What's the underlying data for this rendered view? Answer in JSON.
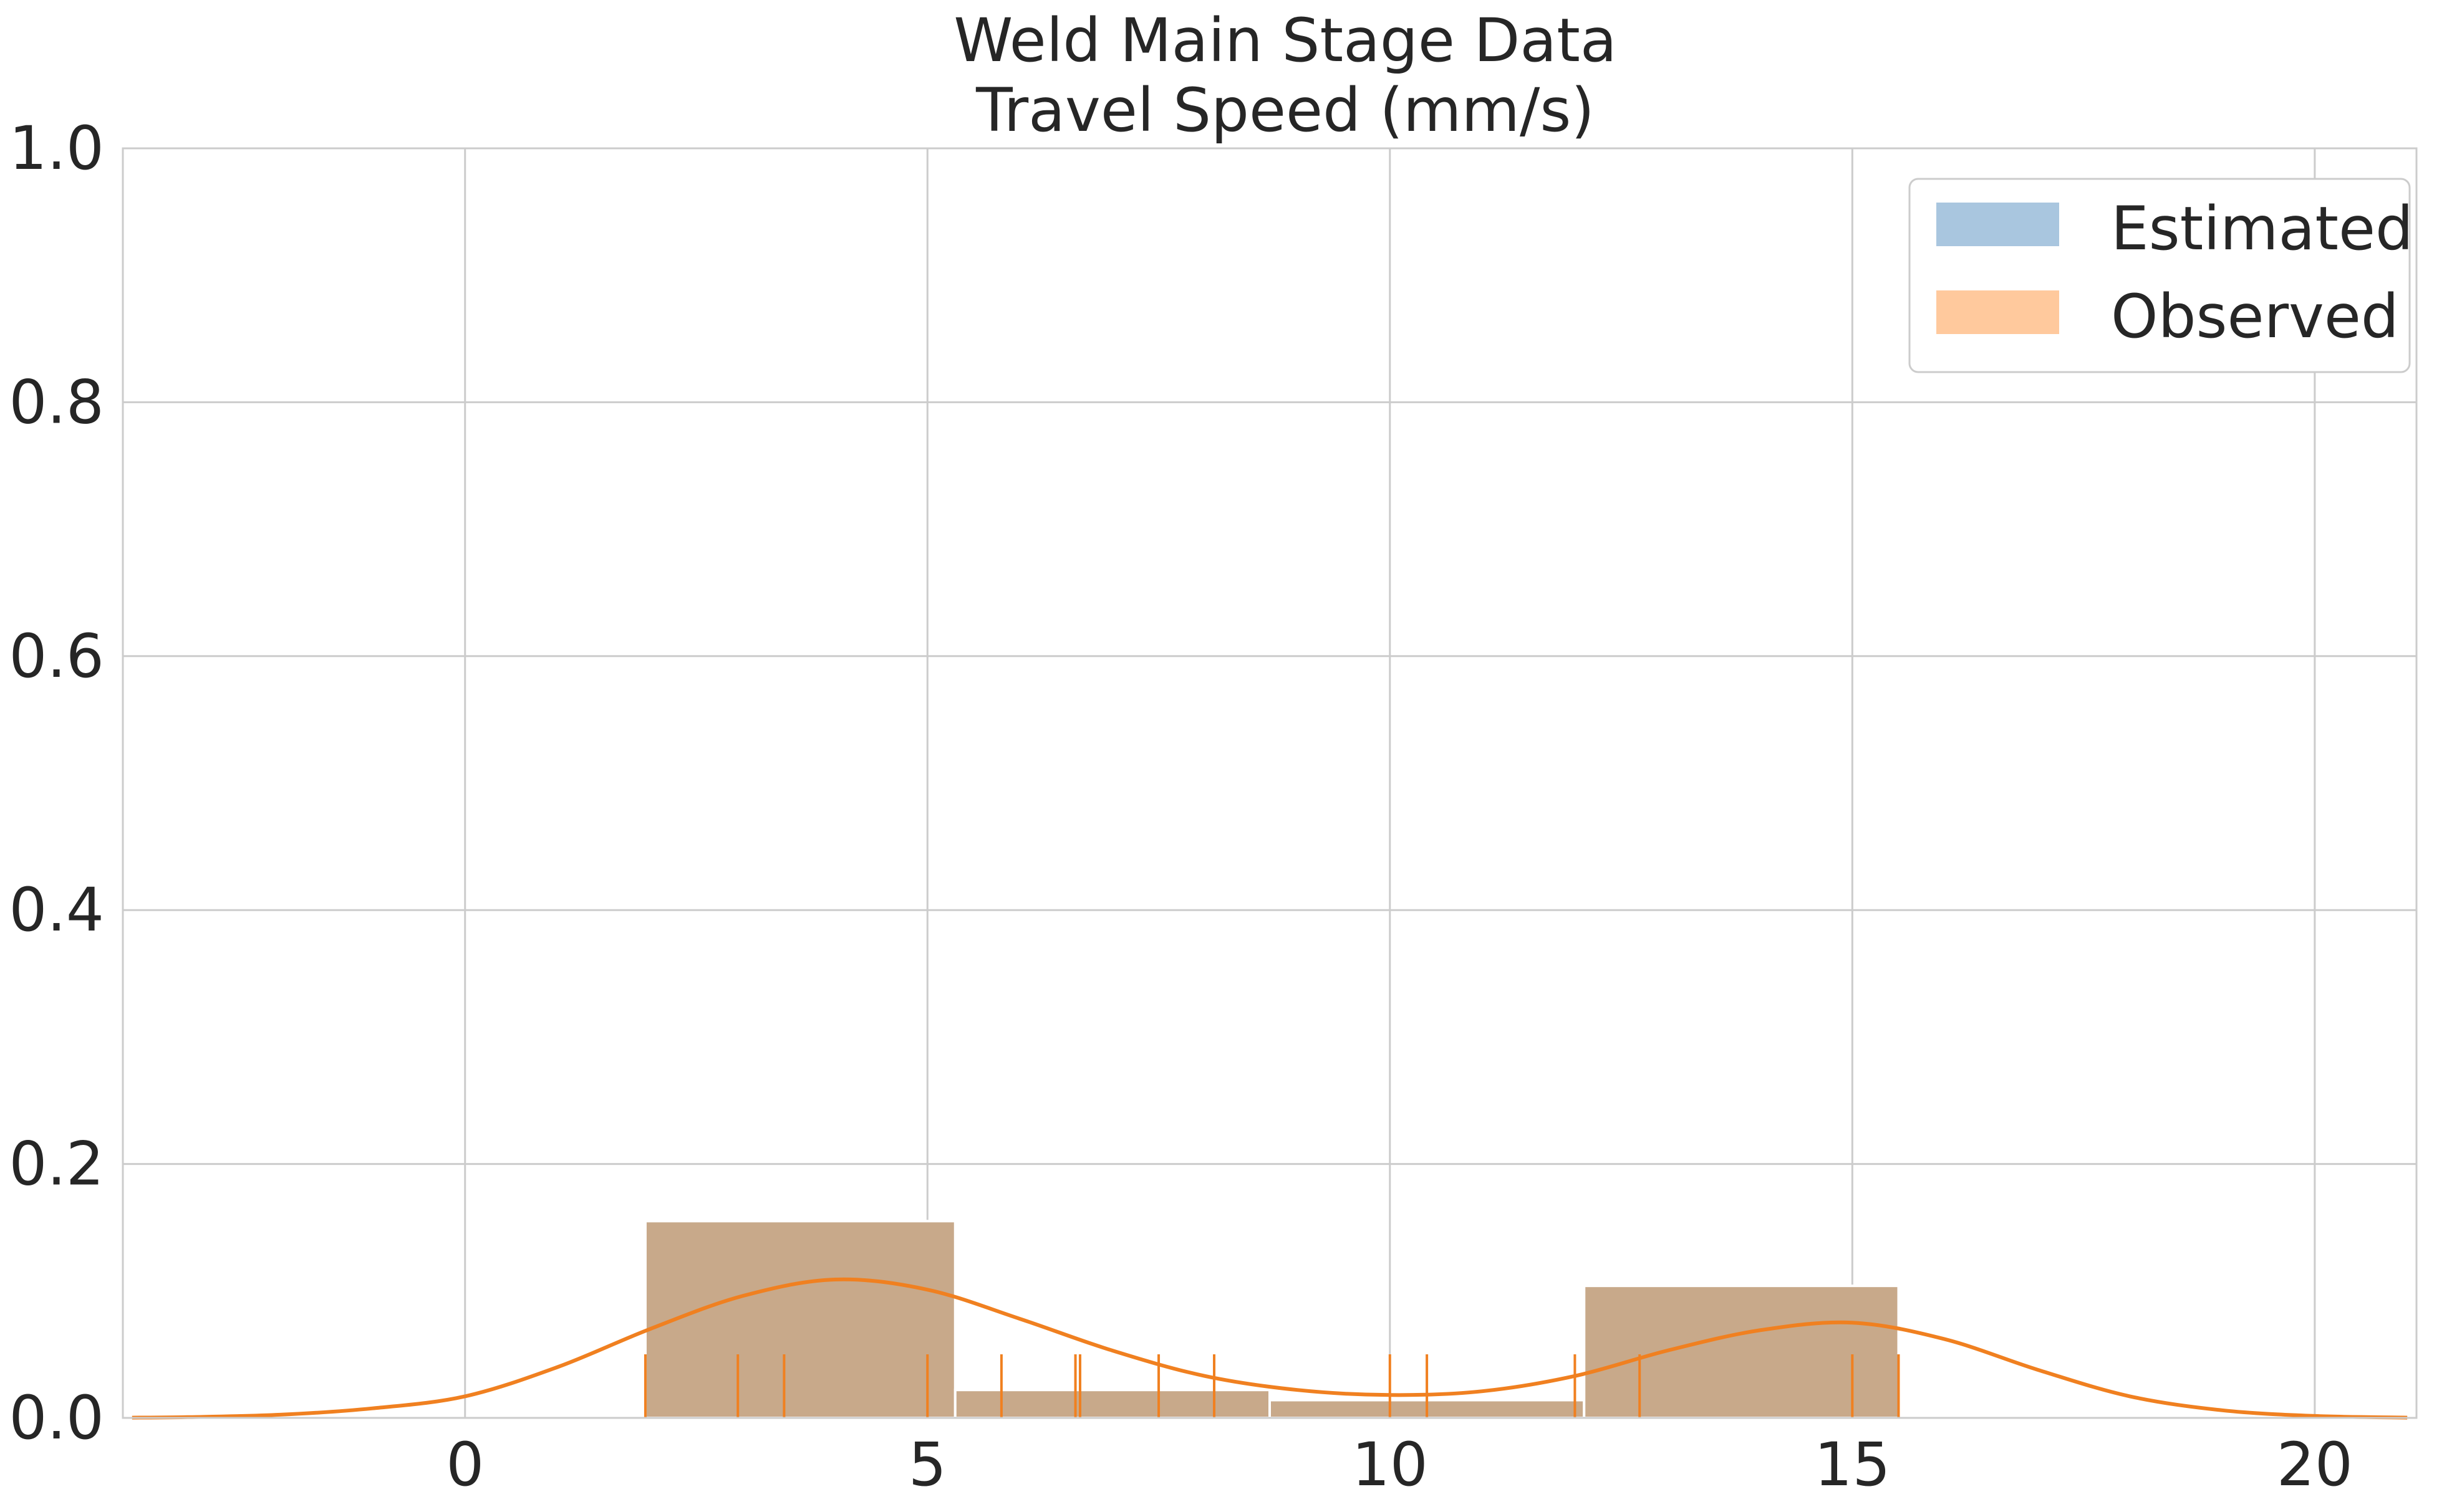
{
  "chart_data": {
    "type": "histogram",
    "title": "Weld Main Stage Data",
    "subtitle": "Travel Speed (mm/s)",
    "xlabel": "",
    "ylabel": "",
    "xlim": [
      -3.7,
      21.1
    ],
    "ylim": [
      0,
      1.0
    ],
    "xticks": [
      0,
      5,
      10,
      15,
      20
    ],
    "xtick_labels": [
      "0",
      "5",
      "10",
      "15",
      "20"
    ],
    "yticks": [
      0.0,
      0.2,
      0.4,
      0.6,
      0.8,
      1.0
    ],
    "ytick_labels": [
      "0.0",
      "0.2",
      "0.4",
      "0.6",
      "0.8",
      "1.0"
    ],
    "grid": true,
    "legend_position": "top-right",
    "series": [
      {
        "name": "Estimated",
        "color": "#a9c6df",
        "bins": [
          {
            "x0": 1.95,
            "x1": 5.3,
            "value": 0.155
          },
          {
            "x0": 5.3,
            "x1": 8.7,
            "value": 0.022
          },
          {
            "x0": 8.7,
            "x1": 12.1,
            "value": 0.014
          },
          {
            "x0": 12.1,
            "x1": 15.5,
            "value": 0.104
          }
        ]
      },
      {
        "name": "Observed",
        "color": "#ffc99d",
        "bins": [
          {
            "x0": 1.95,
            "x1": 5.3,
            "value": 0.155
          },
          {
            "x0": 5.3,
            "x1": 8.7,
            "value": 0.022
          },
          {
            "x0": 8.7,
            "x1": 12.1,
            "value": 0.014
          },
          {
            "x0": 12.1,
            "x1": 15.5,
            "value": 0.104
          }
        ],
        "rug": [
          1.95,
          2.95,
          3.45,
          5.0,
          5.8,
          6.6,
          6.65,
          7.5,
          8.1,
          10.0,
          10.4,
          12.0,
          12.7,
          15.0,
          15.5
        ],
        "kde": [
          [
            -3.6,
            0.0002
          ],
          [
            -3.0,
            0.0006
          ],
          [
            -2.0,
            0.0025
          ],
          [
            -1.0,
            0.0075
          ],
          [
            0.0,
            0.017
          ],
          [
            1.0,
            0.04
          ],
          [
            2.0,
            0.07
          ],
          [
            3.0,
            0.096
          ],
          [
            4.0,
            0.109
          ],
          [
            5.0,
            0.101
          ],
          [
            6.0,
            0.078
          ],
          [
            7.0,
            0.053
          ],
          [
            8.0,
            0.033
          ],
          [
            9.0,
            0.022
          ],
          [
            10.0,
            0.018
          ],
          [
            11.0,
            0.021
          ],
          [
            12.0,
            0.033
          ],
          [
            13.0,
            0.053
          ],
          [
            14.0,
            0.069
          ],
          [
            15.0,
            0.075
          ],
          [
            16.0,
            0.062
          ],
          [
            17.0,
            0.038
          ],
          [
            18.0,
            0.017
          ],
          [
            19.0,
            0.006
          ],
          [
            20.0,
            0.0015
          ],
          [
            21.0,
            0.0002
          ]
        ]
      }
    ]
  },
  "colors": {
    "kde_line": "#f08020",
    "rug": "#f08020",
    "overlap_fill": "#c8a98a",
    "grid": "#cccccc",
    "text": "#262626"
  }
}
